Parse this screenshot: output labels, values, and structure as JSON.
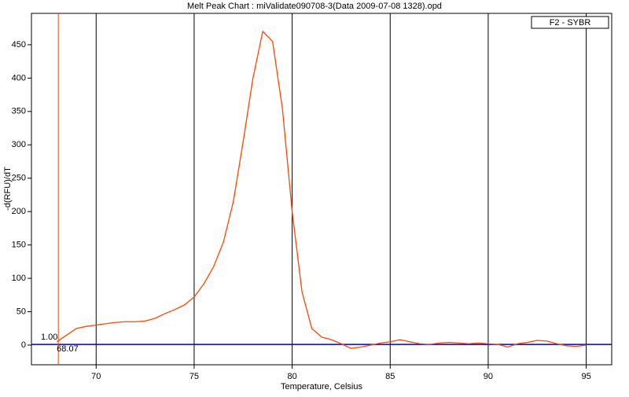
{
  "chart_data": {
    "type": "line",
    "title": "Melt Peak Chart : miValidate090708-3(Data 2009-07-08 1328).opd",
    "x_label": "Temperature, Celsius",
    "y_label": "-d(RFU)/dT",
    "x": [
      68,
      68.5,
      69,
      69.5,
      70,
      70.5,
      71,
      71.5,
      72,
      72.5,
      73,
      73.5,
      74,
      74.5,
      75,
      75.5,
      76,
      76.5,
      77,
      77.5,
      78,
      78.5,
      79,
      79.5,
      80,
      80.5,
      81,
      81.5,
      82,
      82.5,
      83,
      83.5,
      84,
      84.5,
      85,
      85.5,
      86,
      86.5,
      87,
      87.5,
      88,
      88.5,
      89,
      89.5,
      90,
      90.5,
      91,
      91.5,
      92,
      92.5,
      93,
      93.5,
      94,
      94.5,
      95
    ],
    "series": [
      {
        "name": "F2 - SYBR",
        "color": "#ff4500",
        "values": [
          5,
          15,
          25,
          28,
          30,
          32,
          34,
          35,
          35,
          36,
          40,
          47,
          53,
          60,
          72,
          92,
          118,
          155,
          215,
          305,
          400,
          470,
          455,
          355,
          200,
          80,
          25,
          12,
          8,
          2,
          -5,
          -3,
          0,
          3,
          5,
          8,
          5,
          2,
          1,
          3,
          4,
          3,
          2,
          3,
          2,
          1,
          -3,
          2,
          4,
          7,
          6,
          2,
          -1,
          -2,
          0
        ]
      }
    ],
    "threshold": {
      "value": 1,
      "label": "1.00",
      "color": "#0000cc"
    },
    "marker": {
      "value": 68.07,
      "label": "68.07",
      "color": "#ff4500"
    },
    "xlim": [
      66.7,
      96.3
    ],
    "xticks": [
      70,
      75,
      80,
      85,
      90,
      95
    ],
    "ylim": [
      -29.5,
      497
    ],
    "yticks": [
      0,
      50,
      100,
      150,
      200,
      250,
      300,
      350,
      400,
      450
    ],
    "grid": true,
    "legend": "top-right"
  }
}
